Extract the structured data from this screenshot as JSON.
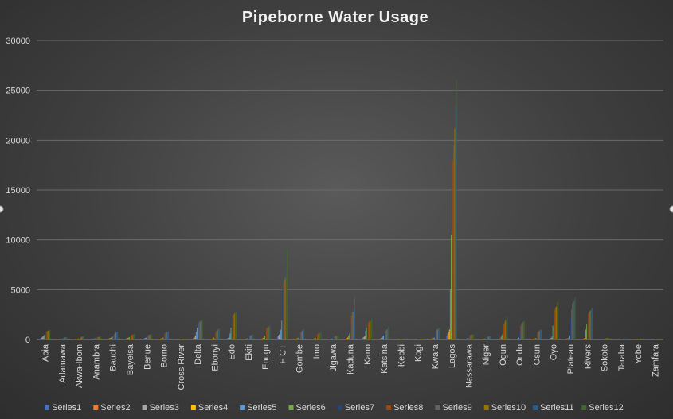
{
  "chart_data": {
    "type": "bar",
    "title": "Pipeborne Water Usage",
    "xlabel": "",
    "ylabel": "",
    "ylim": [
      0,
      30000
    ],
    "yticks": [
      0,
      5000,
      10000,
      15000,
      20000,
      25000,
      30000
    ],
    "grid": true,
    "legend": "bottom",
    "categories": [
      "Abia",
      "Adamawa",
      "Akwa-Ibom",
      "Anambra",
      "Bauchi",
      "Bayelsa",
      "Benue",
      "Borno",
      "Cross River",
      "Delta",
      "Ebonyi",
      "Edo",
      "Ekiti",
      "Enugu",
      "F CT",
      "Gombe",
      "Imo",
      "Jigawa",
      "Kaduna",
      "Kano",
      "Katsina",
      "Kebbi",
      "Kogi",
      "Kwara",
      "Lagos",
      "Nassarawa",
      "Niger",
      "Ogun",
      "Ondo",
      "Osun",
      "Oyo",
      "Plateau",
      "Rivers",
      "Sokoto",
      "Taraba",
      "Yobe",
      "Zamfara"
    ],
    "colors": [
      "#4472C4",
      "#ED7D31",
      "#A5A5A5",
      "#FFC000",
      "#5B9BD5",
      "#70AD47",
      "#264478",
      "#9E480E",
      "#636363",
      "#997300",
      "#255E91",
      "#43682B"
    ],
    "series": [
      {
        "name": "Series1",
        "values": [
          100,
          20,
          30,
          40,
          80,
          60,
          50,
          40,
          10,
          100,
          30,
          80,
          20,
          60,
          300,
          40,
          30,
          20,
          60,
          150,
          60,
          10,
          10,
          40,
          400,
          20,
          20,
          40,
          30,
          30,
          60,
          50,
          60,
          20,
          10,
          10,
          10
        ]
      },
      {
        "name": "Series2",
        "values": [
          150,
          30,
          40,
          50,
          100,
          80,
          70,
          60,
          15,
          150,
          40,
          100,
          30,
          80,
          400,
          60,
          40,
          30,
          80,
          200,
          80,
          15,
          15,
          60,
          600,
          30,
          30,
          60,
          40,
          40,
          80,
          70,
          80,
          30,
          15,
          15,
          15
        ]
      },
      {
        "name": "Series3",
        "values": [
          200,
          40,
          50,
          60,
          120,
          100,
          90,
          80,
          20,
          200,
          60,
          150,
          40,
          100,
          500,
          80,
          60,
          40,
          120,
          250,
          100,
          20,
          20,
          80,
          800,
          40,
          40,
          80,
          60,
          60,
          100,
          90,
          100,
          40,
          20,
          20,
          20
        ]
      },
      {
        "name": "Series4",
        "values": [
          300,
          50,
          60,
          70,
          150,
          130,
          110,
          100,
          25,
          400,
          80,
          200,
          60,
          150,
          700,
          100,
          80,
          60,
          200,
          350,
          150,
          25,
          25,
          100,
          1000,
          60,
          60,
          120,
          80,
          80,
          150,
          120,
          150,
          50,
          25,
          25,
          25
        ]
      },
      {
        "name": "Series5",
        "values": [
          400,
          60,
          80,
          100,
          250,
          200,
          150,
          150,
          30,
          800,
          120,
          600,
          100,
          250,
          1000,
          150,
          120,
          80,
          400,
          900,
          300,
          30,
          30,
          150,
          5000,
          100,
          80,
          300,
          150,
          120,
          300,
          200,
          1000,
          60,
          30,
          30,
          30
        ]
      },
      {
        "name": "Series6",
        "values": [
          500,
          80,
          100,
          120,
          300,
          250,
          200,
          200,
          40,
          1200,
          200,
          1200,
          150,
          350,
          1900,
          200,
          150,
          100,
          600,
          1200,
          400,
          40,
          40,
          200,
          10500,
          150,
          100,
          500,
          200,
          150,
          1400,
          400,
          1500,
          80,
          40,
          40,
          40
        ]
      },
      {
        "name": "Series7",
        "values": [
          650,
          100,
          150,
          170,
          450,
          350,
          300,
          400,
          50,
          1500,
          400,
          2200,
          250,
          900,
          5000,
          500,
          300,
          200,
          1500,
          1500,
          600,
          50,
          50,
          700,
          15000,
          300,
          200,
          900,
          700,
          500,
          2700,
          2000,
          2100,
          100,
          60,
          50,
          50
        ]
      },
      {
        "name": "Series8",
        "values": [
          800,
          150,
          200,
          200,
          550,
          400,
          400,
          600,
          60,
          1700,
          700,
          2400,
          350,
          1100,
          5600,
          700,
          500,
          300,
          2400,
          1700,
          800,
          60,
          60,
          900,
          18000,
          400,
          250,
          1500,
          1400,
          700,
          3000,
          3000,
          2600,
          120,
          80,
          60,
          60
        ]
      },
      {
        "name": "Series9",
        "values": [
          850,
          200,
          250,
          250,
          650,
          450,
          450,
          700,
          70,
          1800,
          900,
          2500,
          400,
          1200,
          6000,
          800,
          600,
          350,
          2700,
          1800,
          900,
          70,
          70,
          1000,
          19500,
          450,
          280,
          1700,
          1600,
          800,
          3200,
          3600,
          2800,
          140,
          90,
          70,
          70
        ]
      },
      {
        "name": "Series10",
        "values": [
          900,
          220,
          300,
          270,
          700,
          500,
          480,
          750,
          80,
          1850,
          1000,
          2600,
          450,
          1300,
          6200,
          900,
          650,
          380,
          2800,
          1850,
          1000,
          80,
          80,
          1050,
          21200,
          480,
          300,
          1900,
          1700,
          900,
          3300,
          3800,
          2900,
          150,
          100,
          80,
          80
        ]
      },
      {
        "name": "Series11",
        "values": [
          920,
          240,
          320,
          280,
          750,
          520,
          500,
          780,
          90,
          1900,
          1050,
          2700,
          480,
          1350,
          6800,
          1000,
          700,
          400,
          3000,
          1900,
          1100,
          90,
          90,
          1100,
          23500,
          500,
          320,
          2100,
          1800,
          950,
          3700,
          3900,
          3000,
          160,
          110,
          90,
          90
        ]
      },
      {
        "name": "Series12",
        "values": [
          950,
          250,
          350,
          300,
          800,
          550,
          520,
          800,
          100,
          1950,
          1100,
          2750,
          500,
          1400,
          9000,
          1050,
          750,
          420,
          4300,
          1950,
          1300,
          100,
          100,
          1150,
          25900,
          520,
          350,
          2250,
          1850,
          1000,
          3800,
          4200,
          3200,
          170,
          120,
          100,
          100
        ]
      }
    ]
  }
}
